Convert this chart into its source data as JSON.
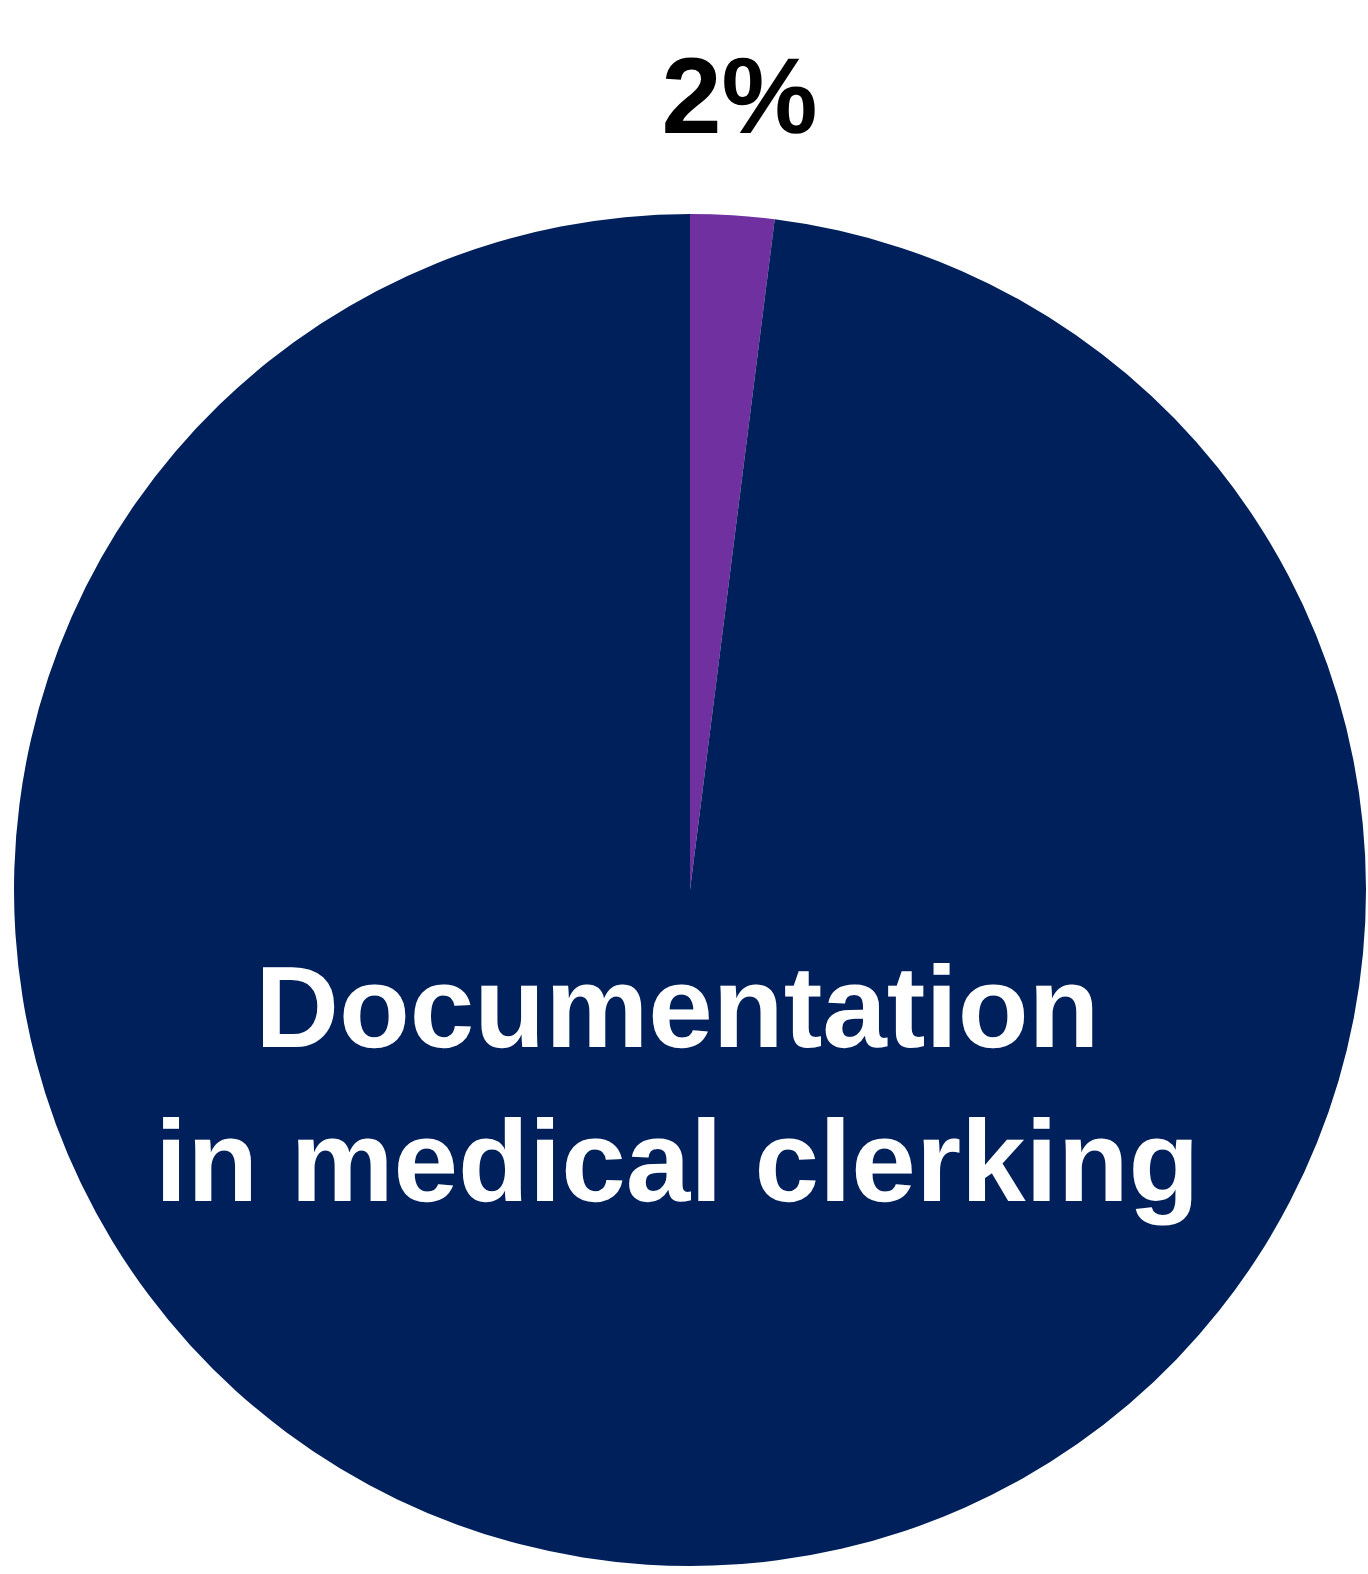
{
  "chart_data": {
    "type": "pie",
    "categories": [
      null,
      "Documentation in medical clerking"
    ],
    "values": [
      2,
      98
    ],
    "colors": [
      "#7030a0",
      "#00205b"
    ],
    "value_labels": [
      "2%",
      null
    ],
    "legend": false
  }
}
